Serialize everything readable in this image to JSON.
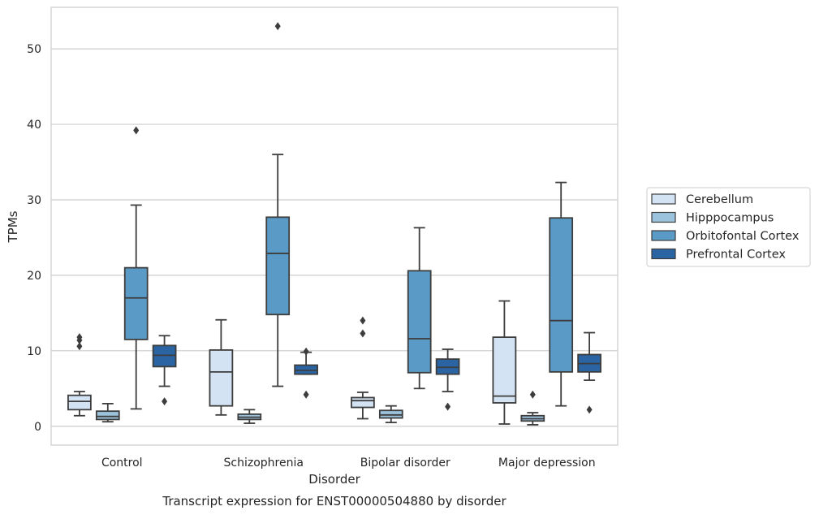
{
  "chart_data": {
    "type": "box",
    "title": "",
    "caption": "Transcript expression for ENST00000504880 by disorder",
    "xlabel": "Disorder",
    "ylabel": "TPMs",
    "ylim": [
      -2.5,
      55.5
    ],
    "yticks": [
      0,
      10,
      20,
      30,
      40,
      50
    ],
    "grid": "horizontal",
    "legend_position": "right",
    "categories": [
      "Control",
      "Schizophrenia",
      "Bipolar disorder",
      "Major depression"
    ],
    "series": [
      {
        "name": "Cerebellum",
        "color": "#d4e3f3",
        "boxes": [
          {
            "whisker_low": 1.4,
            "q1": 2.2,
            "median": 3.3,
            "q3": 4.1,
            "whisker_high": 4.6,
            "outliers": [
              10.6,
              11.4,
              11.8
            ]
          },
          {
            "whisker_low": 1.5,
            "q1": 2.7,
            "median": 7.2,
            "q3": 10.1,
            "whisker_high": 14.1,
            "outliers": []
          },
          {
            "whisker_low": 1.0,
            "q1": 2.5,
            "median": 3.4,
            "q3": 3.8,
            "whisker_high": 4.5,
            "outliers": [
              12.3,
              14.0
            ]
          },
          {
            "whisker_low": 0.3,
            "q1": 3.1,
            "median": 4.0,
            "q3": 11.8,
            "whisker_high": 16.6,
            "outliers": []
          }
        ]
      },
      {
        "name": "Hipppocampus",
        "color": "#9cc3dd",
        "boxes": [
          {
            "whisker_low": 0.6,
            "q1": 0.9,
            "median": 1.3,
            "q3": 2.0,
            "whisker_high": 3.0,
            "outliers": []
          },
          {
            "whisker_low": 0.4,
            "q1": 0.9,
            "median": 1.2,
            "q3": 1.6,
            "whisker_high": 2.2,
            "outliers": []
          },
          {
            "whisker_low": 0.5,
            "q1": 1.1,
            "median": 1.5,
            "q3": 2.1,
            "whisker_high": 2.7,
            "outliers": []
          },
          {
            "whisker_low": 0.2,
            "q1": 0.7,
            "median": 1.0,
            "q3": 1.4,
            "whisker_high": 1.8,
            "outliers": [
              4.2
            ]
          }
        ]
      },
      {
        "name": "Orbitofontal Cortex",
        "color": "#5a9ac7",
        "boxes": [
          {
            "whisker_low": 2.3,
            "q1": 11.5,
            "median": 17.0,
            "q3": 21.0,
            "whisker_high": 29.3,
            "outliers": [
              39.2
            ]
          },
          {
            "whisker_low": 5.3,
            "q1": 14.8,
            "median": 22.9,
            "q3": 27.7,
            "whisker_high": 36.0,
            "outliers": [
              53.0
            ]
          },
          {
            "whisker_low": 5.0,
            "q1": 7.1,
            "median": 11.6,
            "q3": 20.6,
            "whisker_high": 26.3,
            "outliers": []
          },
          {
            "whisker_low": 2.7,
            "q1": 7.2,
            "median": 14.0,
            "q3": 27.6,
            "whisker_high": 32.3,
            "outliers": []
          }
        ]
      },
      {
        "name": "Prefrontal Cortex",
        "color": "#2a64a3",
        "boxes": [
          {
            "whisker_low": 5.3,
            "q1": 7.9,
            "median": 9.4,
            "q3": 10.7,
            "whisker_high": 12.0,
            "outliers": [
              3.3
            ]
          },
          {
            "whisker_low": 6.9,
            "q1": 6.9,
            "median": 7.4,
            "q3": 8.1,
            "whisker_high": 9.8,
            "outliers": [
              4.2,
              9.9
            ]
          },
          {
            "whisker_low": 4.6,
            "q1": 6.9,
            "median": 7.8,
            "q3": 8.9,
            "whisker_high": 10.2,
            "outliers": [
              2.6
            ]
          },
          {
            "whisker_low": 6.1,
            "q1": 7.2,
            "median": 8.3,
            "q3": 9.5,
            "whisker_high": 12.4,
            "outliers": [
              2.2
            ]
          }
        ]
      }
    ]
  }
}
